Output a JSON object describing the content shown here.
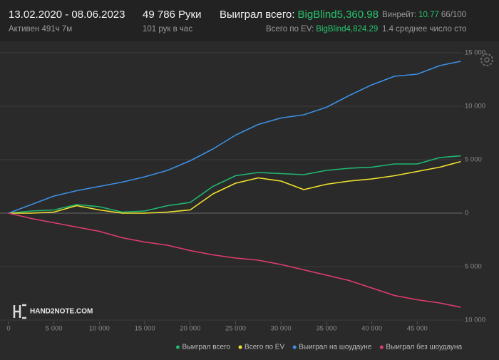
{
  "header": {
    "dates": "13.02.2020 - 08.06.2023",
    "active": "Активен 491ч 7м",
    "hands": "49 786 Руки",
    "rate": "101 рук в час",
    "won_label": "Выиграл всего:",
    "won_value": "BigBlind5,360.98",
    "ev_label": "Всего по EV:",
    "ev_value": "BigBlind4,824.29",
    "winrate_label": "Винрейт:",
    "winrate_value": "10.77",
    "winrate_ratio": "66/100",
    "avg_stacks": "1.4 среднее число сто"
  },
  "logo": "HAND2NOTE.COM",
  "chart_data": {
    "type": "line",
    "x": [
      0,
      2500,
      5000,
      7500,
      10000,
      12500,
      15000,
      17500,
      20000,
      22500,
      25000,
      27500,
      30000,
      32500,
      35000,
      37500,
      40000,
      42500,
      45000,
      47500,
      49786
    ],
    "xlim": [
      0,
      50000
    ],
    "xticks": [
      0,
      {
        "value": 5000,
        "label": "5 000"
      },
      {
        "value": 10000,
        "label": "10 000"
      },
      {
        "value": 15000,
        "label": "15 000"
      },
      {
        "value": 20000,
        "label": "20 000"
      },
      {
        "value": 25000,
        "label": "25 000"
      },
      {
        "value": 30000,
        "label": "30 000"
      },
      {
        "value": 35000,
        "label": "35 000"
      },
      {
        "value": 40000,
        "label": "40 000"
      },
      {
        "value": 45000,
        "label": "45 000"
      }
    ],
    "ylim": [
      -10000,
      15000
    ],
    "yticks": [
      {
        "value": -10000,
        "label": "10 000"
      },
      {
        "value": -5000,
        "label": "5 000"
      },
      0,
      {
        "value": 5000,
        "label": "5 000"
      },
      {
        "value": 10000,
        "label": "10 000"
      },
      {
        "value": 15000,
        "label": "15 000"
      }
    ],
    "grid": true,
    "series": [
      {
        "name": "Выиграл всего",
        "color": "#1fb870",
        "values": [
          0,
          200,
          300,
          800,
          600,
          100,
          200,
          700,
          1000,
          2500,
          3500,
          3800,
          3700,
          3600,
          4000,
          4200,
          4300,
          4600,
          4600,
          5200,
          5361
        ]
      },
      {
        "name": "Всего по EV",
        "color": "#f2e22c",
        "values": [
          0,
          0,
          100,
          700,
          300,
          0,
          0,
          100,
          300,
          1800,
          2800,
          3300,
          3000,
          2200,
          2700,
          3000,
          3200,
          3500,
          3900,
          4300,
          4824
        ]
      },
      {
        "name": "Выиграл на шоудауне",
        "color": "#3c8fe4",
        "values": [
          0,
          800,
          1600,
          2100,
          2500,
          2900,
          3400,
          4000,
          4900,
          6000,
          7300,
          8300,
          8900,
          9200,
          9900,
          11000,
          12000,
          12800,
          13000,
          13800,
          14200
        ]
      },
      {
        "name": "Выиграл без шоудауна",
        "color": "#e03c6c",
        "values": [
          0,
          -500,
          -900,
          -1300,
          -1700,
          -2300,
          -2700,
          -3000,
          -3500,
          -3900,
          -4200,
          -4400,
          -4800,
          -5300,
          -5800,
          -6300,
          -7000,
          -7700,
          -8100,
          -8400,
          -8800
        ]
      }
    ]
  }
}
